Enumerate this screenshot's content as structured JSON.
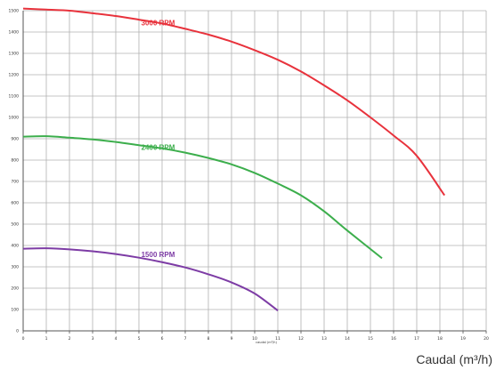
{
  "chart_data": {
    "type": "line",
    "xlabel": "Caudal (m³/h)",
    "xlabel_small": "caudal (m³/h)",
    "ylabel": "",
    "xlim": [
      0,
      20
    ],
    "ylim": [
      0,
      1500
    ],
    "x_ticks": [
      "0",
      "1",
      "2",
      "3",
      "4",
      "5",
      "6",
      "7",
      "8",
      "9",
      "10",
      "11",
      "12",
      "13",
      "14",
      "15",
      "16",
      "17",
      "18",
      "19",
      "20"
    ],
    "y_ticks": [
      "0",
      "100",
      "200",
      "300",
      "400",
      "500",
      "600",
      "700",
      "800",
      "900",
      "1000",
      "1100",
      "1200",
      "1300",
      "1400",
      "1500"
    ],
    "grid": true,
    "series": [
      {
        "name": "3000 RPM",
        "color": "#e8323c",
        "x": [
          0,
          1,
          2,
          3,
          4,
          5,
          6,
          7,
          8,
          9,
          10,
          11,
          12,
          13,
          14,
          15,
          16,
          17,
          18.2
        ],
        "y": [
          1510,
          1505,
          1500,
          1488,
          1475,
          1458,
          1440,
          1415,
          1388,
          1355,
          1315,
          1270,
          1215,
          1150,
          1080,
          1000,
          915,
          820,
          635
        ]
      },
      {
        "name": "2400 RPM",
        "color": "#3cae4c",
        "x": [
          0,
          1,
          2,
          3,
          4,
          5,
          6,
          7,
          8,
          9,
          10,
          11,
          12,
          13,
          14,
          15.5
        ],
        "y": [
          910,
          912,
          905,
          897,
          885,
          870,
          855,
          835,
          810,
          780,
          740,
          690,
          635,
          560,
          470,
          340
        ]
      },
      {
        "name": "1500 RPM",
        "color": "#7d3ca5",
        "x": [
          0,
          1,
          2,
          3,
          4,
          5,
          6,
          7,
          8,
          9,
          10,
          11
        ],
        "y": [
          385,
          387,
          382,
          373,
          360,
          343,
          322,
          297,
          265,
          227,
          175,
          95
        ]
      }
    ]
  }
}
